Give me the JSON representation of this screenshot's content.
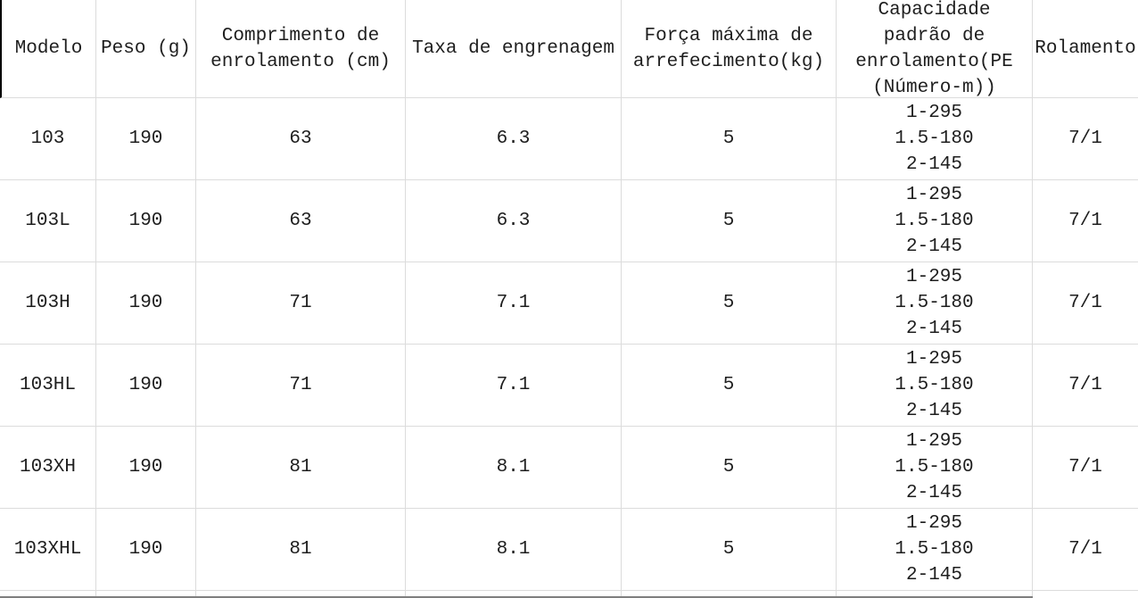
{
  "table": {
    "columns": [
      {
        "id": "model",
        "label": "Modelo"
      },
      {
        "id": "weight",
        "label": "Peso (g)"
      },
      {
        "id": "length",
        "label": "Comprimento de\nenrolamento (cm)"
      },
      {
        "id": "gear",
        "label": "Taxa de engrenagem"
      },
      {
        "id": "drag",
        "label": "Força máxima de\narrefecimento(kg)"
      },
      {
        "id": "capacity",
        "label": "Capacidade\npadrão de\nenrolamento(PE\n(Número-m))"
      },
      {
        "id": "bearing",
        "label": "Rolamento"
      }
    ],
    "rows": [
      {
        "model": "103",
        "weight": "190",
        "length": "63",
        "gear": "6.3",
        "drag": "5",
        "capacity": "1-295\n1.5-180\n2-145",
        "bearing": "7/1"
      },
      {
        "model": "103L",
        "weight": "190",
        "length": "63",
        "gear": "6.3",
        "drag": "5",
        "capacity": "1-295\n1.5-180\n2-145",
        "bearing": "7/1"
      },
      {
        "model": "103H",
        "weight": "190",
        "length": "71",
        "gear": "7.1",
        "drag": "5",
        "capacity": "1-295\n1.5-180\n2-145",
        "bearing": "7/1"
      },
      {
        "model": "103HL",
        "weight": "190",
        "length": "71",
        "gear": "7.1",
        "drag": "5",
        "capacity": "1-295\n1.5-180\n2-145",
        "bearing": "7/1"
      },
      {
        "model": "103XH",
        "weight": "190",
        "length": "81",
        "gear": "8.1",
        "drag": "5",
        "capacity": "1-295\n1.5-180\n2-145",
        "bearing": "7/1"
      },
      {
        "model": "103XHL",
        "weight": "190",
        "length": "81",
        "gear": "8.1",
        "drag": "5",
        "capacity": "1-295\n1.5-180\n2-145",
        "bearing": "7/1"
      }
    ],
    "colors": {
      "border": "#dcdcdc",
      "header_left_border": "#000000",
      "bottom_edge_line": "#7f7f7f",
      "text": "#1e1e1e",
      "background": "#ffffff"
    }
  }
}
